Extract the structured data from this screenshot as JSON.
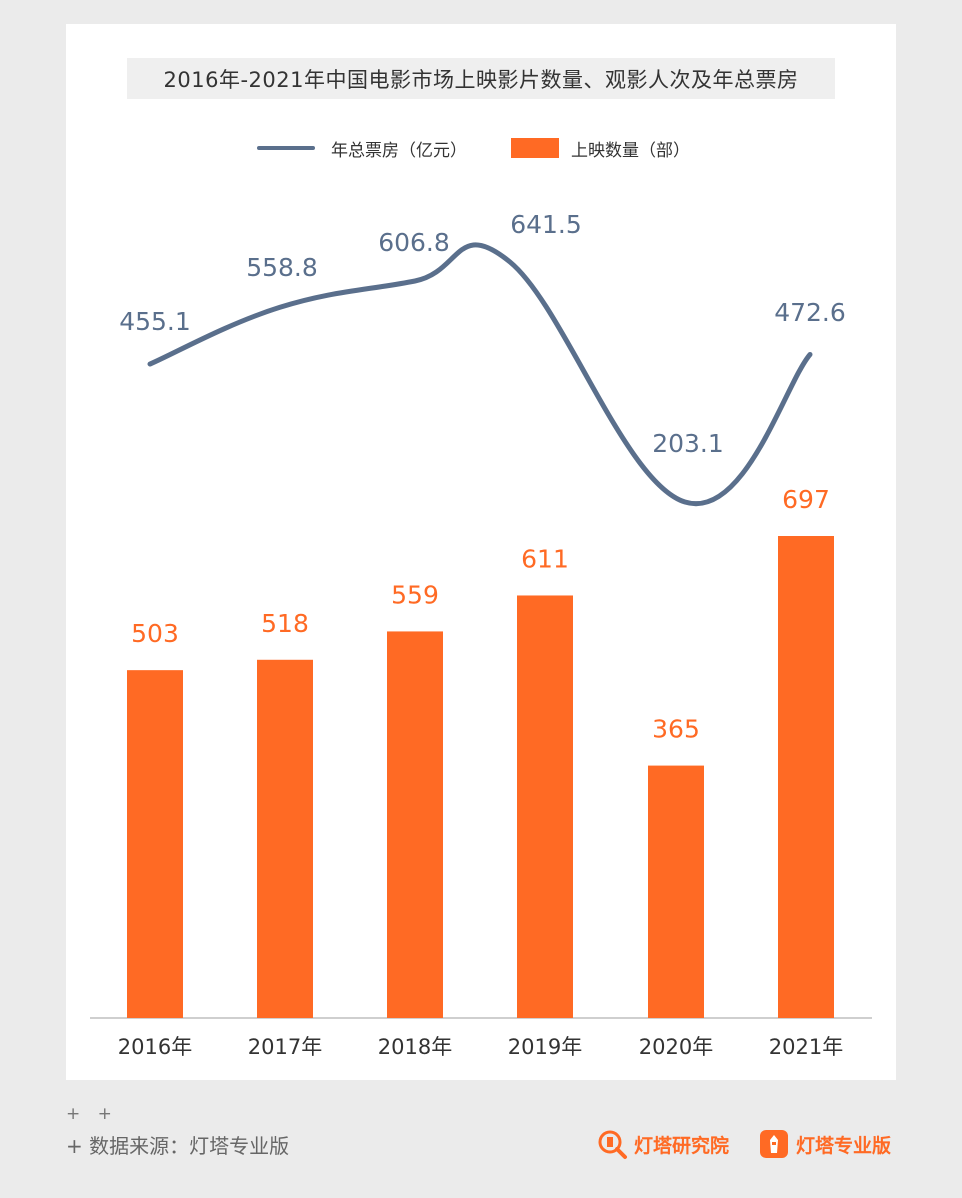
{
  "title": "2016年-2021年中国电影市场上映影片数量、观影人次及年总票房",
  "legend": {
    "line_label": "年总票房（亿元）",
    "bar_label": "上映数量（部）"
  },
  "colors": {
    "line": "#5a6f8c",
    "bar": "#ff6a24",
    "line_label": "#5a6f8c",
    "bar_label": "#ff6a24"
  },
  "chart_data": {
    "type": "bar",
    "categories": [
      "2016年",
      "2017年",
      "2018年",
      "2019年",
      "2020年",
      "2021年"
    ],
    "series": [
      {
        "name": "上映数量（部）",
        "type": "bar",
        "values": [
          503,
          518,
          559,
          611,
          365,
          697
        ]
      },
      {
        "name": "年总票房（亿元）",
        "type": "line",
        "values": [
          455.1,
          558.8,
          606.8,
          641.5,
          203.1,
          472.6
        ]
      }
    ],
    "title": "2016年-2021年中国电影市场上映影片数量、观影人次及年总票房",
    "xlabel": "",
    "ylabel": "",
    "grid": false,
    "legend_position": "top-center"
  },
  "footer": {
    "plus_marks": "+ +",
    "source": "+ 数据来源：灯塔专业版",
    "brand_research": "灯塔研究院",
    "brand_pro": "灯塔专业版",
    "brand_research_icon": "magnifier-lighthouse-icon",
    "brand_pro_icon": "lighthouse-icon"
  }
}
